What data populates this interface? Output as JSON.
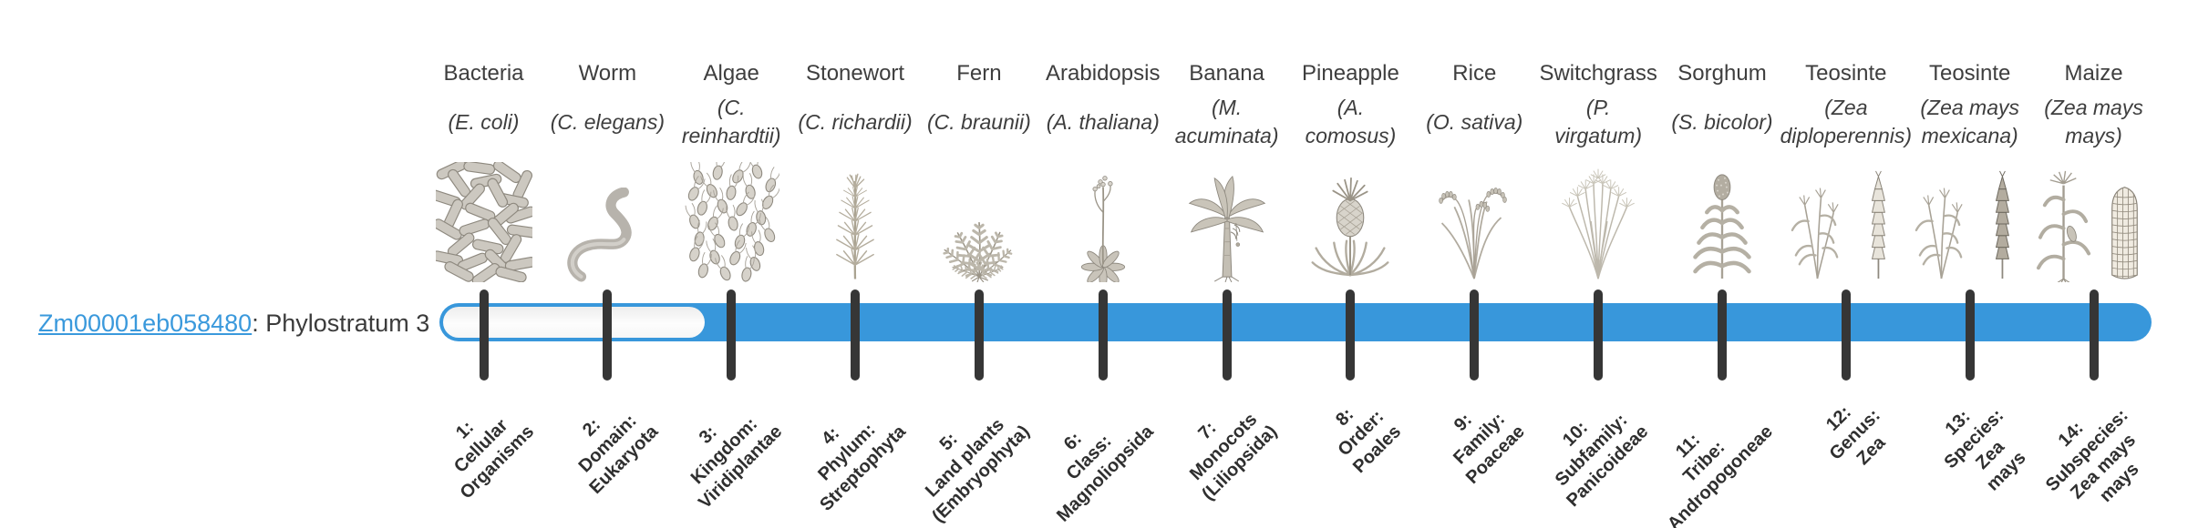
{
  "gene": {
    "id": "Zm00001eb058480",
    "suffix": ": Phylostratum 3",
    "link_color": "#3a99dc"
  },
  "timeline": {
    "bar_color": "#3897db",
    "tick_color": "#363636",
    "unfilled_strata": "1-2",
    "filled_from_stratum": 3
  },
  "taxa": [
    {
      "common": "Bacteria",
      "scientific": "(E. coli)",
      "icon": "bacteria-illustration",
      "stratum_label": "1:\nCellular\nOrganisms"
    },
    {
      "common": "Worm",
      "scientific": "(C. elegans)",
      "icon": "worm-illustration",
      "stratum_label": "2:\nDomain:\nEukaryota"
    },
    {
      "common": "Algae",
      "scientific": "(C.\nreinhardtii)",
      "icon": "algae-illustration",
      "stratum_label": "3:\nKingdom:\nViridiplantae"
    },
    {
      "common": "Stonewort",
      "scientific": "(C. richardii)",
      "icon": "stonewort-illustration",
      "stratum_label": "4:\nPhylum:\nStreptophyta"
    },
    {
      "common": "Fern",
      "scientific": "(C. braunii)",
      "icon": "fern-illustration",
      "stratum_label": "5:\nLand plants\n(Embryophyta)"
    },
    {
      "common": "Arabidopsis",
      "scientific": "(A. thaliana)",
      "icon": "arabidopsis-illustration",
      "stratum_label": "6:\nClass:\nMagnoliopsida"
    },
    {
      "common": "Banana",
      "scientific": "(M.\nacuminata)",
      "icon": "banana-illustration",
      "stratum_label": "7:\nMonocots\n(Liliopsida)"
    },
    {
      "common": "Pineapple",
      "scientific": "(A.\ncomosus)",
      "icon": "pineapple-illustration",
      "stratum_label": "8:\nOrder:\nPoales"
    },
    {
      "common": "Rice",
      "scientific": "(O. sativa)",
      "icon": "rice-illustration",
      "stratum_label": "9:\nFamily:\nPoaceae"
    },
    {
      "common": "Switchgrass",
      "scientific": "(P.\nvirgatum)",
      "icon": "switchgrass-illustration",
      "stratum_label": "10:\nSubfamily:\nPanicoideae"
    },
    {
      "common": "Sorghum",
      "scientific": "(S. bicolor)",
      "icon": "sorghum-illustration",
      "stratum_label": "11:\nTribe:\nAndropogoneae"
    },
    {
      "common": "Teosinte",
      "scientific": "(Zea\ndiploperennis)",
      "icon": "teosinte-diploperennis-illustration",
      "stratum_label": "12:\nGenus:\nZea"
    },
    {
      "common": "Teosinte",
      "scientific": "(Zea mays\nmexicana)",
      "icon": "teosinte-mexicana-illustration",
      "stratum_label": "13:\nSpecies:\nZea\nmays"
    },
    {
      "common": "Maize",
      "scientific": "(Zea mays\nmays)",
      "icon": "maize-illustration",
      "stratum_label": "14:\nSubspecies:\nZea mays\nmays"
    }
  ]
}
